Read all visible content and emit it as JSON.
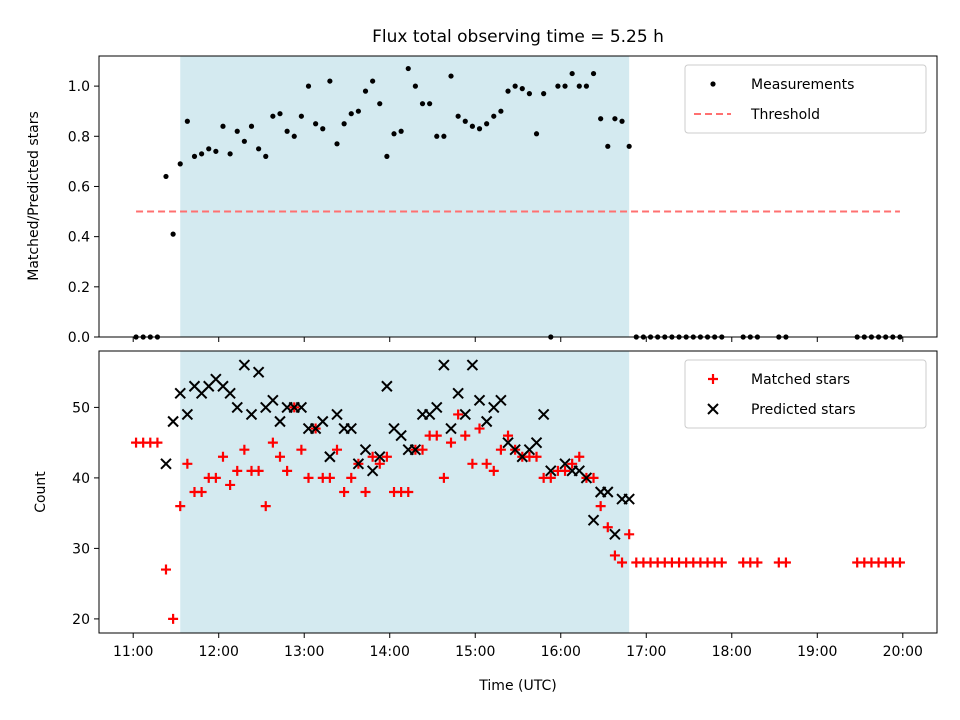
{
  "chart_data": [
    {
      "type": "scatter",
      "title": "Flux total observing time = 5.25 h",
      "xlabel": "",
      "ylabel": "Matched/Predicted stars",
      "ylim": [
        0,
        1.12
      ],
      "yticks": [
        "0.0",
        "0.2",
        "0.4",
        "0.6",
        "0.8",
        "1.0"
      ],
      "ytick_values": [
        0,
        0.2,
        0.4,
        0.6,
        0.8,
        1.0
      ],
      "legend_position": "upper-right",
      "shaded_interval": [
        "11:33",
        "16:48"
      ],
      "shade_color": "#d4eaf0",
      "series": [
        {
          "name": "Measurements",
          "marker": "dot",
          "color": "#000000",
          "x": [
            "11:02",
            "11:07",
            "11:12",
            "11:17",
            "11:23",
            "11:28",
            "11:33",
            "11:38",
            "11:43",
            "11:48",
            "11:53",
            "11:58",
            "12:03",
            "12:08",
            "12:13",
            "12:18",
            "12:23",
            "12:28",
            "12:33",
            "12:38",
            "12:43",
            "12:48",
            "12:53",
            "12:58",
            "13:03",
            "13:08",
            "13:13",
            "13:18",
            "13:23",
            "13:28",
            "13:33",
            "13:38",
            "13:43",
            "13:48",
            "13:53",
            "13:58",
            "14:03",
            "14:08",
            "14:13",
            "14:18",
            "14:23",
            "14:28",
            "14:33",
            "14:38",
            "14:43",
            "14:48",
            "14:53",
            "14:58",
            "15:03",
            "15:08",
            "15:13",
            "15:18",
            "15:23",
            "15:28",
            "15:33",
            "15:38",
            "15:43",
            "15:48",
            "15:53",
            "15:58",
            "16:03",
            "16:08",
            "16:13",
            "16:18",
            "16:23",
            "16:28",
            "16:33",
            "16:38",
            "16:43",
            "16:48",
            "16:53",
            "16:58",
            "17:03",
            "17:08",
            "17:13",
            "17:18",
            "17:23",
            "17:28",
            "17:33",
            "17:38",
            "17:43",
            "17:48",
            "17:53",
            "18:08",
            "18:13",
            "18:18",
            "18:33",
            "18:38",
            "19:28",
            "19:33",
            "19:38",
            "19:43",
            "19:48",
            "19:53",
            "19:58"
          ],
          "y": [
            0,
            0,
            0,
            0,
            0.64,
            0.41,
            0.69,
            0.86,
            0.72,
            0.73,
            0.75,
            0.74,
            0.84,
            0.73,
            0.82,
            0.78,
            0.84,
            0.75,
            0.72,
            0.88,
            0.89,
            0.82,
            0.8,
            0.88,
            1.0,
            0.85,
            0.83,
            1.02,
            0.77,
            0.85,
            0.89,
            0.9,
            0.98,
            1.02,
            0.93,
            0.72,
            0.81,
            0.82,
            1.07,
            1.0,
            0.93,
            0.93,
            0.8,
            0.8,
            1.04,
            0.88,
            0.86,
            0.84,
            0.83,
            0.85,
            0.88,
            0.9,
            0.98,
            1.0,
            0.99,
            0.97,
            0.81,
            0.97,
            0,
            1.0,
            1.0,
            1.05,
            1.0,
            1.0,
            1.05,
            0.87,
            0.76,
            0.87,
            0.86,
            0.76,
            0,
            0,
            0,
            0,
            0,
            0,
            0,
            0,
            0,
            0,
            0,
            0,
            0,
            0,
            0,
            0,
            0,
            0,
            0,
            0,
            0,
            0,
            0,
            0,
            0
          ]
        },
        {
          "name": "Threshold",
          "style": "dashed",
          "color": "#ff7070",
          "x": [
            "11:02",
            "19:58"
          ],
          "y": [
            0.5,
            0.5
          ]
        }
      ]
    },
    {
      "type": "scatter",
      "title": "",
      "xlabel": "Time (UTC)",
      "ylabel": "Count",
      "ylim": [
        18,
        58
      ],
      "yticks": [
        "20",
        "30",
        "40",
        "50"
      ],
      "ytick_values": [
        20,
        30,
        40,
        50
      ],
      "xticks": [
        "11:00",
        "12:00",
        "13:00",
        "14:00",
        "15:00",
        "16:00",
        "17:00",
        "18:00",
        "19:00",
        "20:00"
      ],
      "xlim": [
        "10:36",
        "20:24"
      ],
      "legend_position": "upper-right",
      "shaded_interval": [
        "11:33",
        "16:48"
      ],
      "shade_color": "#d4eaf0",
      "series": [
        {
          "name": "Matched stars",
          "marker": "plus",
          "color": "#ff0000",
          "x": [
            "11:02",
            "11:07",
            "11:12",
            "11:17",
            "11:23",
            "11:28",
            "11:33",
            "11:38",
            "11:43",
            "11:48",
            "11:53",
            "11:58",
            "12:03",
            "12:08",
            "12:13",
            "12:18",
            "12:23",
            "12:28",
            "12:33",
            "12:38",
            "12:43",
            "12:48",
            "12:53",
            "12:58",
            "13:03",
            "13:08",
            "13:13",
            "13:18",
            "13:23",
            "13:28",
            "13:33",
            "13:38",
            "13:43",
            "13:48",
            "13:53",
            "13:58",
            "14:03",
            "14:08",
            "14:13",
            "14:18",
            "14:23",
            "14:28",
            "14:33",
            "14:38",
            "14:43",
            "14:48",
            "14:53",
            "14:58",
            "15:03",
            "15:08",
            "15:13",
            "15:18",
            "15:23",
            "15:28",
            "15:33",
            "15:38",
            "15:43",
            "15:48",
            "15:53",
            "15:58",
            "16:03",
            "16:08",
            "16:13",
            "16:18",
            "16:23",
            "16:28",
            "16:33",
            "16:38",
            "16:43",
            "16:48",
            "16:53",
            "16:58",
            "17:03",
            "17:08",
            "17:13",
            "17:18",
            "17:23",
            "17:28",
            "17:33",
            "17:38",
            "17:43",
            "17:48",
            "17:53",
            "18:08",
            "18:13",
            "18:18",
            "18:33",
            "18:38",
            "19:28",
            "19:33",
            "19:38",
            "19:43",
            "19:48",
            "19:53",
            "19:58"
          ],
          "y": [
            45,
            45,
            45,
            45,
            27,
            20,
            36,
            42,
            38,
            38,
            40,
            40,
            43,
            39,
            41,
            44,
            41,
            41,
            36,
            45,
            43,
            41,
            50,
            44,
            40,
            47,
            40,
            40,
            44,
            38,
            40,
            42,
            38,
            43,
            42,
            43,
            38,
            38,
            38,
            44,
            44,
            46,
            46,
            40,
            45,
            49,
            46,
            42,
            47,
            42,
            41,
            44,
            46,
            44,
            43,
            43,
            43,
            40,
            40,
            41,
            41,
            42,
            43,
            40,
            40,
            36,
            33,
            29,
            28,
            32,
            28,
            28,
            28,
            28,
            28,
            28,
            28,
            28,
            28,
            28,
            28,
            28,
            28,
            28,
            28,
            28,
            28,
            28,
            28,
            28,
            28,
            28,
            28,
            28,
            28
          ]
        },
        {
          "name": "Predicted stars",
          "marker": "x",
          "color": "#000000",
          "x": [
            "11:23",
            "11:28",
            "11:33",
            "11:38",
            "11:43",
            "11:48",
            "11:53",
            "11:58",
            "12:03",
            "12:08",
            "12:13",
            "12:18",
            "12:23",
            "12:28",
            "12:33",
            "12:38",
            "12:43",
            "12:48",
            "12:53",
            "12:58",
            "13:03",
            "13:08",
            "13:13",
            "13:18",
            "13:23",
            "13:28",
            "13:33",
            "13:38",
            "13:43",
            "13:48",
            "13:53",
            "13:58",
            "14:03",
            "14:08",
            "14:13",
            "14:18",
            "14:23",
            "14:28",
            "14:33",
            "14:38",
            "14:43",
            "14:48",
            "14:53",
            "14:58",
            "15:03",
            "15:08",
            "15:13",
            "15:18",
            "15:23",
            "15:28",
            "15:33",
            "15:38",
            "15:43",
            "15:48",
            "15:53",
            "16:03",
            "16:08",
            "16:13",
            "16:18",
            "16:23",
            "16:28",
            "16:33",
            "16:38",
            "16:43",
            "16:48"
          ],
          "y": [
            42,
            48,
            52,
            49,
            53,
            52,
            53,
            54,
            53,
            52,
            50,
            56,
            49,
            55,
            50,
            51,
            48,
            50,
            50,
            50,
            47,
            47,
            48,
            43,
            49,
            47,
            47,
            42,
            44,
            41,
            43,
            53,
            47,
            46,
            44,
            44,
            49,
            49,
            50,
            56,
            47,
            52,
            49,
            56,
            51,
            48,
            50,
            51,
            45,
            44,
            43,
            44,
            45,
            49,
            41,
            42,
            41,
            41,
            40,
            34,
            38,
            38,
            32,
            37,
            37
          ]
        }
      ]
    }
  ]
}
